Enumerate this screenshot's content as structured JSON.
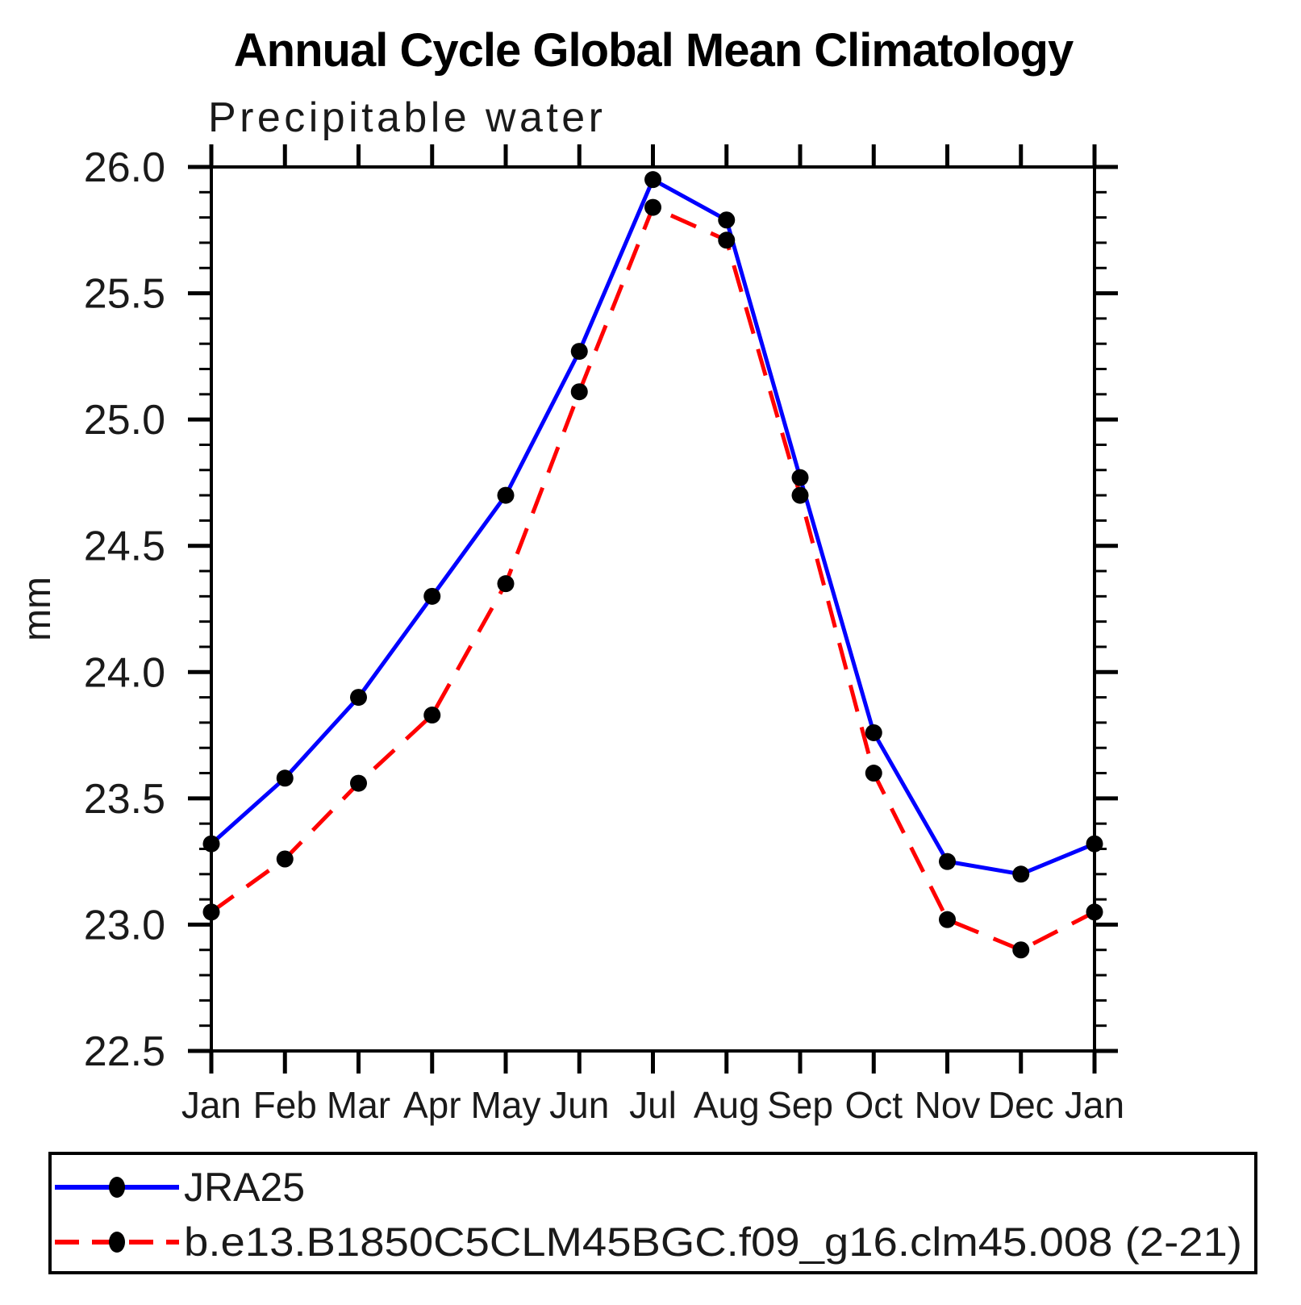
{
  "chart_data": {
    "type": "line",
    "title": "Annual Cycle Global Mean Climatology",
    "subtitle": "Precipitable water",
    "ylabel": "mm",
    "xlabel": "",
    "ylim": [
      22.5,
      26.0
    ],
    "ytick_interval": 0.5,
    "yminor_interval": 0.1,
    "ytick_values": [
      26.0,
      25.5,
      25.0,
      24.5,
      24.0,
      23.5,
      23.0,
      22.5
    ],
    "ytick_labels": [
      "26.0",
      "25.5",
      "25.0",
      "24.5",
      "24.0",
      "23.5",
      "23.0",
      "22.5"
    ],
    "categories": [
      "Jan",
      "Feb",
      "Mar",
      "Apr",
      "May",
      "Jun",
      "Jul",
      "Aug",
      "Sep",
      "Oct",
      "Nov",
      "Dec",
      "Jan"
    ],
    "grid": false,
    "legend_position": "bottom",
    "marker": "filled-circle",
    "marker_color": "#000000",
    "axis_color": "#000000",
    "background_color": "#ffffff",
    "series": [
      {
        "name": "JRA25",
        "color": "#0000ff",
        "line_style": "solid",
        "values": [
          23.32,
          23.58,
          23.9,
          24.3,
          24.7,
          25.27,
          25.95,
          25.79,
          24.77,
          23.76,
          23.25,
          23.2,
          23.32
        ]
      },
      {
        "name": "b.e13.B1850C5CLM45BGC.f09_g16.clm45.008 (2-21)",
        "color": "#ff0000",
        "line_style": "dashed",
        "values": [
          23.05,
          23.26,
          23.56,
          23.83,
          24.35,
          25.11,
          25.84,
          25.71,
          24.7,
          23.6,
          23.02,
          22.9,
          23.05
        ]
      }
    ]
  }
}
